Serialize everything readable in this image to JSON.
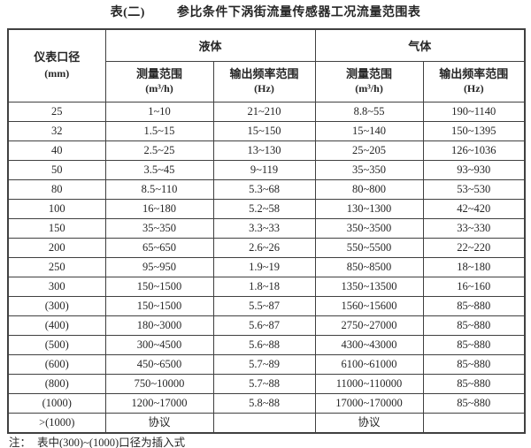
{
  "title": {
    "number": "表(二)",
    "text": "参比条件下涡街流量传感器工况流量范围表"
  },
  "table": {
    "header": {
      "diameter_line1": "仪表口径",
      "diameter_line2": "(mm)",
      "group_liquid": "液体",
      "group_gas": "气体",
      "measure_range": "测量范围",
      "measure_unit": "(m³/h)",
      "freq_range": "输出频率范围",
      "freq_unit": "(Hz)"
    },
    "rows": [
      [
        "25",
        "1~10",
        "21~210",
        "8.8~55",
        "190~1140"
      ],
      [
        "32",
        "1.5~15",
        "15~150",
        "15~140",
        "150~1395"
      ],
      [
        "40",
        "2.5~25",
        "13~130",
        "25~205",
        "126~1036"
      ],
      [
        "50",
        "3.5~45",
        "9~119",
        "35~350",
        "93~930"
      ],
      [
        "80",
        "8.5~110",
        "5.3~68",
        "80~800",
        "53~530"
      ],
      [
        "100",
        "16~180",
        "5.2~58",
        "130~1300",
        "42~420"
      ],
      [
        "150",
        "35~350",
        "3.3~33",
        "350~3500",
        "33~330"
      ],
      [
        "200",
        "65~650",
        "2.6~26",
        "550~5500",
        "22~220"
      ],
      [
        "250",
        "95~950",
        "1.9~19",
        "850~8500",
        "18~180"
      ],
      [
        "300",
        "150~1500",
        "1.8~18",
        "1350~13500",
        "16~160"
      ],
      [
        "(300)",
        "150~1500",
        "5.5~87",
        "1560~15600",
        "85~880"
      ],
      [
        "(400)",
        "180~3000",
        "5.6~87",
        "2750~27000",
        "85~880"
      ],
      [
        "(500)",
        "300~4500",
        "5.6~88",
        "4300~43000",
        "85~880"
      ],
      [
        "(600)",
        "450~6500",
        "5.7~89",
        "6100~61000",
        "85~880"
      ],
      [
        "(800)",
        "750~10000",
        "5.7~88",
        "11000~110000",
        "85~880"
      ],
      [
        "(1000)",
        "1200~17000",
        "5.8~88",
        "17000~170000",
        "85~880"
      ],
      [
        ">(1000)",
        "协议",
        "",
        "协议",
        ""
      ]
    ]
  },
  "note": {
    "label": "注：",
    "text": "表中(300)~(1000)口径为插入式"
  },
  "colors": {
    "border": "#404040",
    "text": "#262626",
    "background": "#ffffff"
  }
}
